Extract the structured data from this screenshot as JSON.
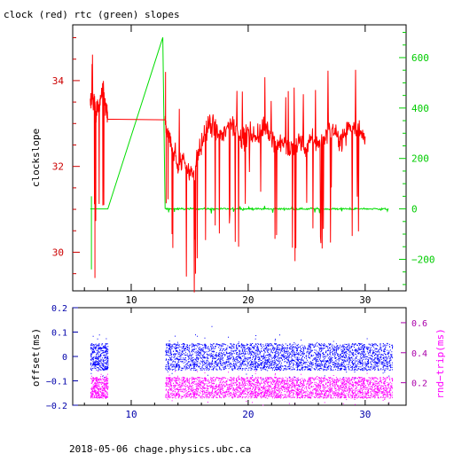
{
  "header": {
    "title": "clock (red) rtc (green) slopes"
  },
  "footer": {
    "text": "2018-05-06 chage.physics.ubc.ca"
  },
  "colors": {
    "clock": "#ff0000",
    "rtc": "#00dd00",
    "offset": "#0000ff",
    "roundtrip": "#ff00ff",
    "axis": "#000000",
    "left_ticks_top": "#cc0000",
    "right_ticks_top": "#00cc00",
    "left_ticks_bottom": "#0000aa",
    "right_ticks_bottom": "#aa00aa"
  },
  "chart_data": [
    {
      "type": "line",
      "title": "clock (red) rtc (green) slopes",
      "ylabel": "clockslope",
      "y2label": "",
      "xlim": [
        5,
        33.5
      ],
      "ylim": [
        29.1,
        35.3
      ],
      "y2lim": [
        -325,
        730
      ],
      "xticks": [
        10,
        20,
        30
      ],
      "yticks": [
        30,
        32,
        34
      ],
      "y2ticks": [
        -200,
        0,
        200,
        400,
        600
      ],
      "grid": false,
      "series": [
        {
          "key": "clock",
          "axis": "left",
          "x": [
            6.5,
            6.8,
            7.0,
            7.3,
            7.6,
            7.9,
            8.0,
            12.9,
            13.0,
            13.3,
            13.6,
            14.0,
            14.5,
            15.0,
            15.5,
            16.0,
            16.5,
            17.0,
            17.5,
            18.0,
            18.5,
            19.0,
            19.5,
            20.0,
            20.5,
            21.0,
            21.5,
            22.0,
            22.5,
            23.0,
            23.5,
            24.0,
            24.5,
            25.0,
            25.5,
            26.0,
            26.5,
            27.0,
            27.5,
            28.0,
            28.5,
            29.0,
            29.5,
            30.0
          ],
          "y": [
            33.4,
            33.6,
            33.2,
            33.5,
            33.7,
            33.3,
            33.1,
            33.1,
            32.8,
            32.6,
            32.4,
            32.0,
            32.2,
            31.8,
            32.0,
            32.5,
            32.9,
            33.0,
            32.7,
            32.8,
            33.0,
            32.9,
            32.6,
            32.8,
            32.7,
            32.8,
            32.9,
            32.7,
            32.5,
            32.6,
            32.3,
            32.5,
            32.6,
            32.4,
            32.7,
            32.5,
            32.7,
            32.9,
            32.8,
            32.6,
            32.9,
            33.0,
            32.8,
            32.7
          ]
        },
        {
          "key": "rtc",
          "axis": "right",
          "x": [
            6.5,
            8.0,
            12.7,
            12.9,
            14.0,
            16.0,
            18.0,
            20.0,
            22.0,
            24.0,
            26.0,
            28.0,
            30.0,
            32.0
          ],
          "y": [
            0,
            0,
            680,
            0,
            0,
            0,
            0,
            0,
            0,
            0,
            0,
            0,
            0,
            0
          ]
        }
      ]
    },
    {
      "type": "scatter",
      "ylabel": "offset(ms)",
      "y2label": "rnd−trip(ms)",
      "xlim": [
        5,
        33.5
      ],
      "ylim": [
        -0.2,
        0.2
      ],
      "y2lim": [
        0.05,
        0.7
      ],
      "xticks": [
        10,
        20,
        30
      ],
      "yticks": [
        -0.2,
        -0.1,
        0,
        0.1,
        0.2
      ],
      "y2ticks": [
        0.2,
        0.4,
        0.6
      ],
      "ytick_labels": [
        "−0.2",
        "−0.1",
        "0",
        "0.1",
        "0.2"
      ],
      "grid": false,
      "series": [
        {
          "key": "offset",
          "axis": "left",
          "segments": [
            [
              6.5,
              8.0
            ],
            [
              12.9,
              32.3
            ]
          ],
          "y_center": 0.0,
          "y_spread": 0.055
        },
        {
          "key": "roundtrip",
          "axis": "right",
          "segments": [
            [
              6.5,
              8.0
            ],
            [
              12.9,
              32.3
            ]
          ],
          "y_center": 0.17,
          "y_spread": 0.07
        }
      ]
    }
  ]
}
